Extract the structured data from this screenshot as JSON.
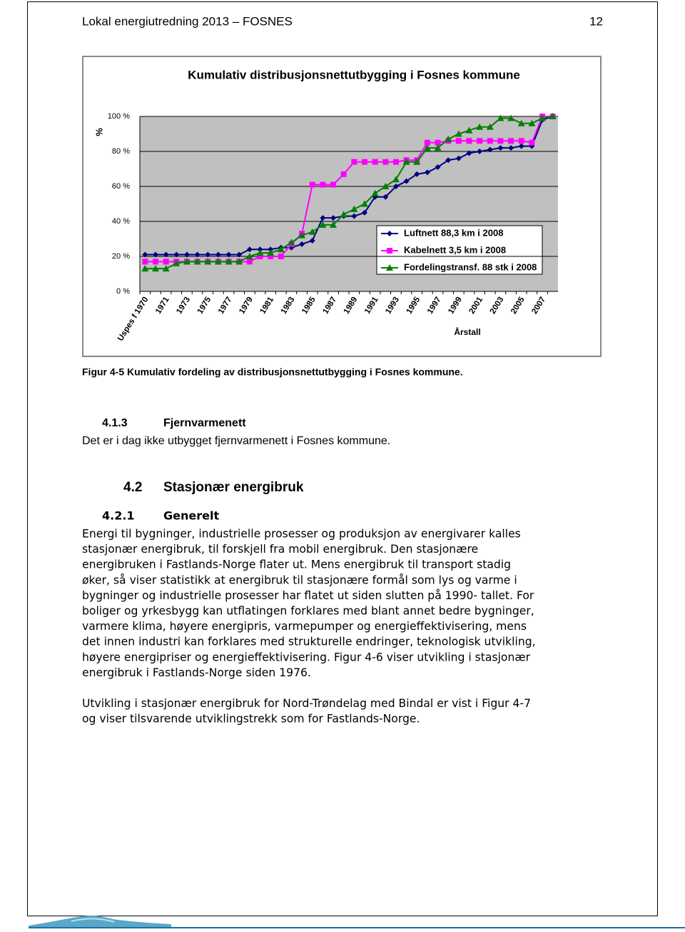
{
  "header": {
    "title": "Lokal energiutredning 2013 – FOSNES",
    "page": "12"
  },
  "chart_data": {
    "type": "line",
    "title": "Kumulativ distribusjonsnettutbygging i Fosnes kommune",
    "y_label": "%",
    "x_label": "Årstall",
    "categories": [
      "Uspes f 1970",
      null,
      "1971",
      null,
      "1973",
      null,
      "1975",
      null,
      "1977",
      null,
      "1979",
      null,
      "1981",
      null,
      "1983",
      null,
      "1985",
      null,
      "1987",
      null,
      "1989",
      null,
      "1991",
      null,
      "1993",
      null,
      "1995",
      null,
      "1997",
      null,
      "1999",
      null,
      "2001",
      null,
      "2003",
      null,
      "2005",
      null,
      "2007",
      null
    ],
    "ylim": [
      0,
      100
    ],
    "yticks": [
      {
        "value": 0,
        "label": "0 %"
      },
      {
        "value": 20,
        "label": "20 %"
      },
      {
        "value": 40,
        "label": "40 %"
      },
      {
        "value": 60,
        "label": "60 %"
      },
      {
        "value": 80,
        "label": "80 %"
      },
      {
        "value": 100,
        "label": "100 %"
      }
    ],
    "grid": true,
    "legend": "lower right",
    "series": [
      {
        "name": "Luftnett 88,3 km i 2008",
        "color": "#000080",
        "marker": "diamond",
        "values": [
          21,
          21,
          21,
          21,
          21,
          21,
          21,
          21,
          21,
          21,
          24,
          24,
          24,
          25,
          25,
          27,
          29,
          42,
          42,
          43,
          43,
          45,
          54,
          54,
          60,
          63,
          67,
          68,
          71,
          75,
          76,
          79,
          80,
          81,
          82,
          82,
          83,
          83,
          98,
          100
        ]
      },
      {
        "name": "Kabelnett 3,5 km i 2008",
        "color": "#ff00ff",
        "marker": "square",
        "values": [
          17,
          17,
          17,
          17,
          17,
          17,
          17,
          17,
          17,
          17,
          17,
          20,
          20,
          20,
          27,
          33,
          61,
          61,
          61,
          67,
          74,
          74,
          74,
          74,
          74,
          75,
          75,
          85,
          85,
          86,
          86,
          86,
          86,
          86,
          86,
          86,
          86,
          85,
          100,
          100
        ]
      },
      {
        "name": "Fordelingstransf. 88 stk i 2008",
        "color": "#008000",
        "marker": "triangle",
        "values": [
          13,
          13,
          13,
          16,
          17,
          17,
          17,
          17,
          17,
          17,
          20,
          22,
          22,
          24,
          28,
          32,
          34,
          38,
          38,
          44,
          47,
          50,
          56,
          60,
          64,
          74,
          74,
          82,
          82,
          87,
          90,
          92,
          94,
          94,
          99,
          99,
          96,
          96,
          99,
          100
        ]
      }
    ]
  },
  "caption": "Figur 4-5 Kumulativ fordeling av distribusjonsnettutbygging i Fosnes kommune.",
  "section_413": {
    "number": "4.1.3",
    "title": "Fjernvarmenett",
    "text": "Det er i dag ikke utbygget fjernvarmenett i Fosnes kommune."
  },
  "section_42": {
    "number": "4.2",
    "title": "Stasjonær energibruk"
  },
  "section_421": {
    "number": "4.2.1",
    "title": "Generelt",
    "paragraphs": [
      [
        "Energi til bygninger, industrielle prosesser og produksjon av energivarer kalles",
        "stasjonær energibruk, til forskjell fra mobil energibruk. Den stasjonære",
        "energibruken i Fastlands-Norge flater ut. Mens energibruk til transport stadig",
        "øker, så viser statistikk at energibruk til stasjonære formål som lys og varme i",
        "bygninger og industrielle prosesser har flatet ut siden slutten på 1990- tallet. For",
        "boliger og yrkesbygg kan utflatingen forklares med blant annet bedre bygninger,",
        "varmere klima, høyere energipris, varmepumper og energieffektivisering, mens",
        "det innen industri kan forklares med strukturelle endringer, teknologisk utvikling,",
        "høyere energipriser og energieffektivisering. Figur 4-6 viser utvikling i stasjonær",
        "energibruk i Fastlands-Norge siden 1976."
      ],
      [
        "Utvikling i stasjonær energibruk for Nord-Trøndelag med Bindal er vist i Figur 4-7",
        "og viser tilsvarende utviklingstrekk som for Fastlands-Norge."
      ]
    ]
  }
}
